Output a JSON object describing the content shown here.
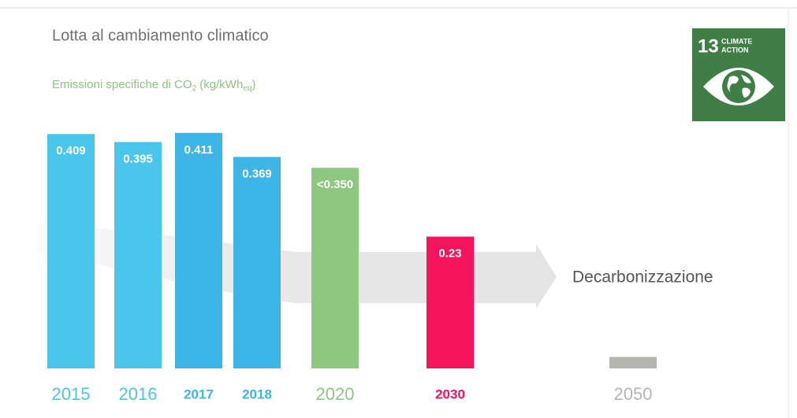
{
  "chart_data": {
    "type": "bar",
    "title": "Lotta al cambiamento climatico",
    "subtitle": [
      "Emissioni specifiche di CO",
      "2",
      " (kg/kWh",
      "eq",
      ")"
    ],
    "categories": [
      "2015",
      "2016",
      "2017",
      "2018",
      "2020",
      "2030",
      "2050"
    ],
    "values": [
      0.409,
      0.395,
      0.411,
      0.369,
      0.35,
      0.23,
      0.02
    ],
    "value_labels": [
      "0.409",
      "0.395",
      "0.411",
      "0.369",
      "<0.350",
      "0.23",
      null
    ],
    "colors": [
      "#4ac5ec",
      "#4ac5ec",
      "#3db5e6",
      "#3db5e6",
      "#8ec780",
      "#f5135e",
      "#b5b5b0"
    ],
    "annotation": "Decarbonizzazione",
    "badge": {
      "number": "13",
      "text": [
        "CLIMATE",
        "ACTION"
      ]
    }
  }
}
